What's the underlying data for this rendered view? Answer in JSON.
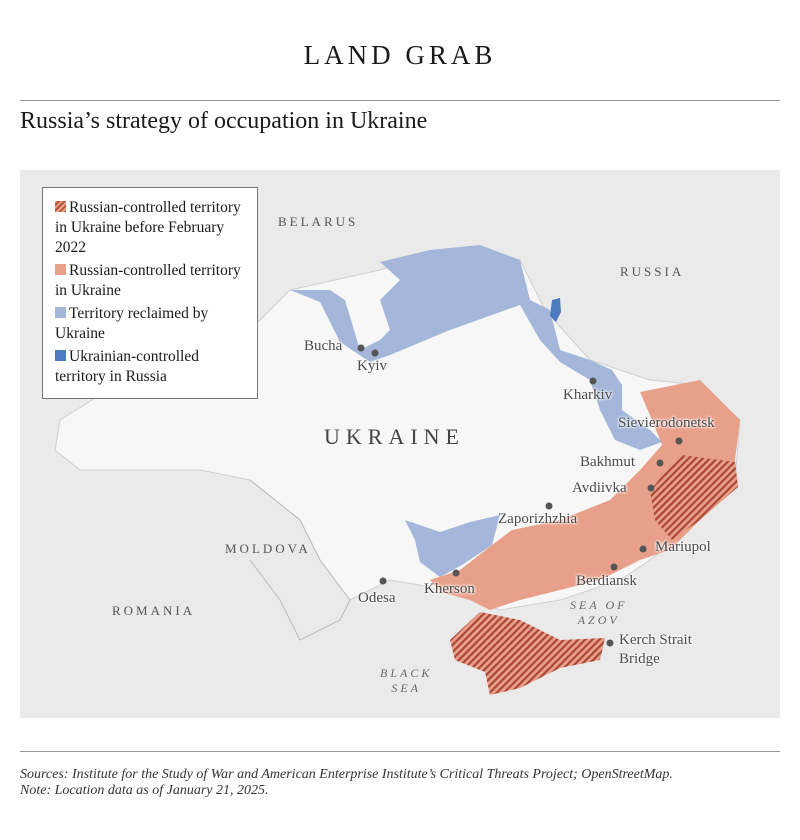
{
  "kicker": "LAND GRAB",
  "title": "Russia’s strategy of occupation in Ukraine",
  "colors": {
    "pre2022": "#b8543f",
    "russian": "#e9a08a",
    "reclaimed": "#a4b7da",
    "ukr_in_russia": "#4a7cbf",
    "land": "#f7f7f7",
    "background": "#eaeaea"
  },
  "legend": [
    {
      "label": "Russian-controlled territory in Ukraine before February 2022",
      "swatch": "hatched"
    },
    {
      "label": "Russian-controlled territory in Ukraine",
      "swatch": "salmon"
    },
    {
      "label": "Territory reclaimed by Ukraine",
      "swatch": "light-blue"
    },
    {
      "label": "Ukrainian-controlled territory in Russia",
      "swatch": "dark-blue"
    }
  ],
  "countries": {
    "belarus": "BELARUS",
    "russia": "RUSSIA",
    "ukraine": "UKRAINE",
    "moldova": "MOLDOVA",
    "romania": "ROMANIA"
  },
  "seas": {
    "azov_1": "SEA OF",
    "azov_2": "AZOV",
    "black_1": "BLACK",
    "black_2": "SEA"
  },
  "cities": [
    "Bucha",
    "Kyiv",
    "Kharkiv",
    "Sievierodonetsk",
    "Bakhmut",
    "Avdiivka",
    "Zaporizhzhia",
    "Mariupol",
    "Berdiansk",
    "Kherson",
    "Odesa",
    "Kerch Strait",
    "Bridge"
  ],
  "footer": {
    "sources": "Sources: Institute for the Study of War and American Enterprise Institute’s Critical Threats Project; OpenStreetMap.",
    "note": "Note: Location data as of January 21, 2025."
  }
}
